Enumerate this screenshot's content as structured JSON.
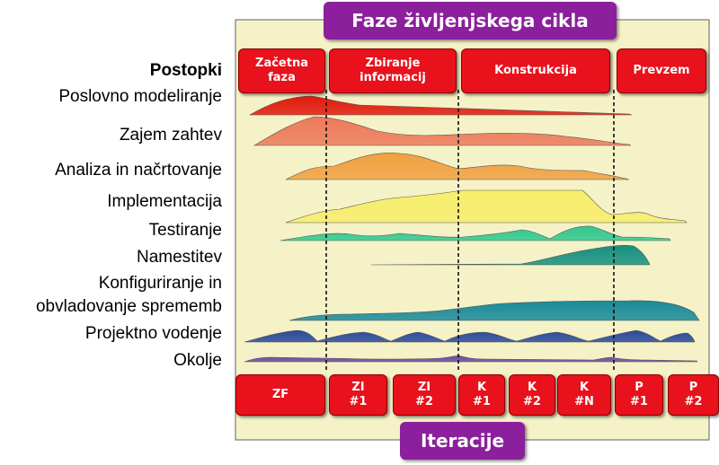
{
  "header": {
    "title": "Faze življenjskega cikla"
  },
  "footer": {
    "title": "Iteracije"
  },
  "disciplines_heading": "Postopki",
  "phases": [
    {
      "label": "Začetna\nfaza"
    },
    {
      "label": "Zbiranje\ninformacij"
    },
    {
      "label": "Konstrukcija"
    },
    {
      "label": "Prevzem"
    }
  ],
  "disciplines": [
    {
      "label": "Poslovno modeliranje",
      "color": "#e01a0c"
    },
    {
      "label": "Zajem zahtev",
      "color": "#ec7a5a"
    },
    {
      "label": "Analiza in načrtovanje",
      "color": "#f0a040"
    },
    {
      "label": "Implementacija",
      "color": "#f6ee6a"
    },
    {
      "label": "Testiranje",
      "color": "#30c890"
    },
    {
      "label": "Namestitev",
      "color": "#169080"
    },
    {
      "label": "Konfiguriranje in\nobvladovanje sprememb",
      "color": "#1a8a9a"
    },
    {
      "label": "Projektno vodenje",
      "color": "#2a4a9a"
    },
    {
      "label": "Okolje",
      "color": "#6a4aa0"
    }
  ],
  "iterations": [
    {
      "label": "ZF"
    },
    {
      "label": "ZI\n#1"
    },
    {
      "label": "ZI\n#2"
    },
    {
      "label": "K\n#1"
    },
    {
      "label": "K\n#2"
    },
    {
      "label": "K\n#N"
    },
    {
      "label": "P\n#1"
    },
    {
      "label": "P\n#2"
    }
  ]
}
